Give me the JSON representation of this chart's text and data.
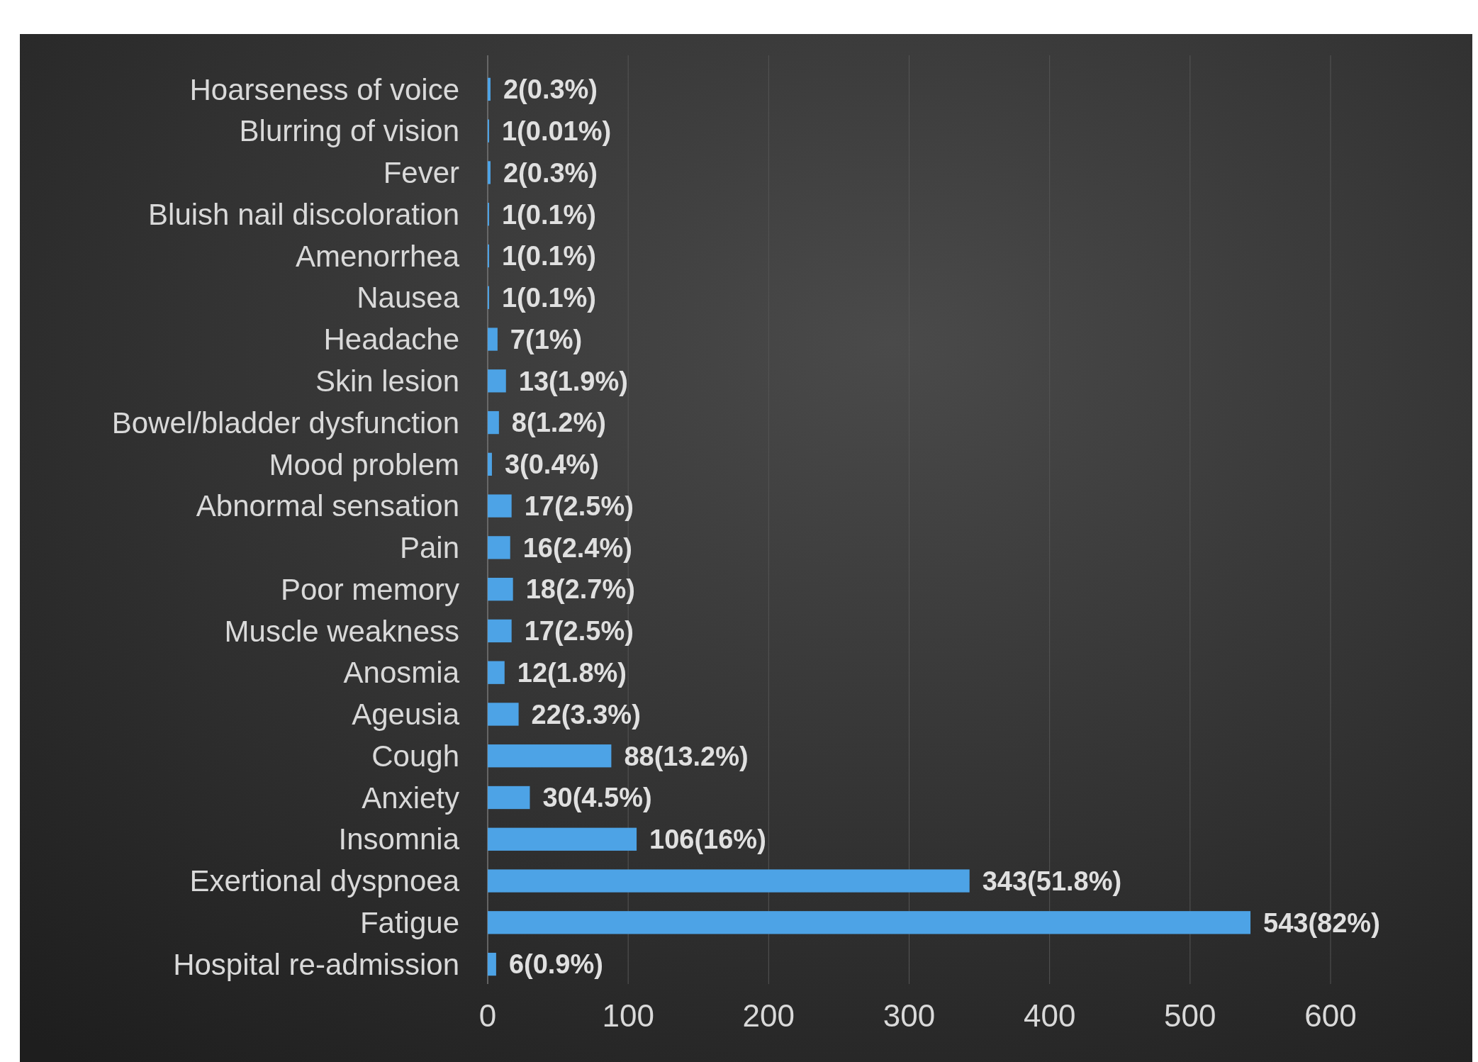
{
  "chart_data": {
    "type": "bar",
    "orientation": "horizontal",
    "categories": [
      "Hoarseness of voice",
      "Blurring of vision",
      "Fever",
      "Bluish nail discoloration",
      "Amenorrhea",
      "Nausea",
      "Headache",
      "Skin lesion",
      "Bowel/bladder dysfunction",
      "Mood problem",
      "Abnormal sensation",
      "Pain",
      "Poor memory",
      "Muscle weakness",
      "Anosmia",
      "Ageusia",
      "Cough",
      "Anxiety",
      "Insomnia",
      "Exertional dyspnoea",
      "Fatigue",
      "Hospital re-admission"
    ],
    "values": [
      2,
      1,
      2,
      1,
      1,
      1,
      7,
      13,
      8,
      3,
      17,
      16,
      18,
      17,
      12,
      22,
      88,
      30,
      106,
      343,
      543,
      6
    ],
    "value_labels": [
      "2(0.3%)",
      "1(0.01%)",
      "2(0.3%)",
      "1(0.1%)",
      "1(0.1%)",
      "1(0.1%)",
      "7(1%)",
      "13(1.9%)",
      "8(1.2%)",
      "3(0.4%)",
      "17(2.5%)",
      "16(2.4%)",
      "18(2.7%)",
      "17(2.5%)",
      "12(1.8%)",
      "22(3.3%)",
      "88(13.2%)",
      "30(4.5%)",
      "106(16%)",
      "343(51.8%)",
      "543(82%)",
      "6(0.9%)"
    ],
    "color": "#4da3e6",
    "xlim": [
      0,
      600
    ],
    "xticks": [
      0,
      100,
      200,
      300,
      400,
      500,
      600
    ],
    "grid": "x"
  }
}
